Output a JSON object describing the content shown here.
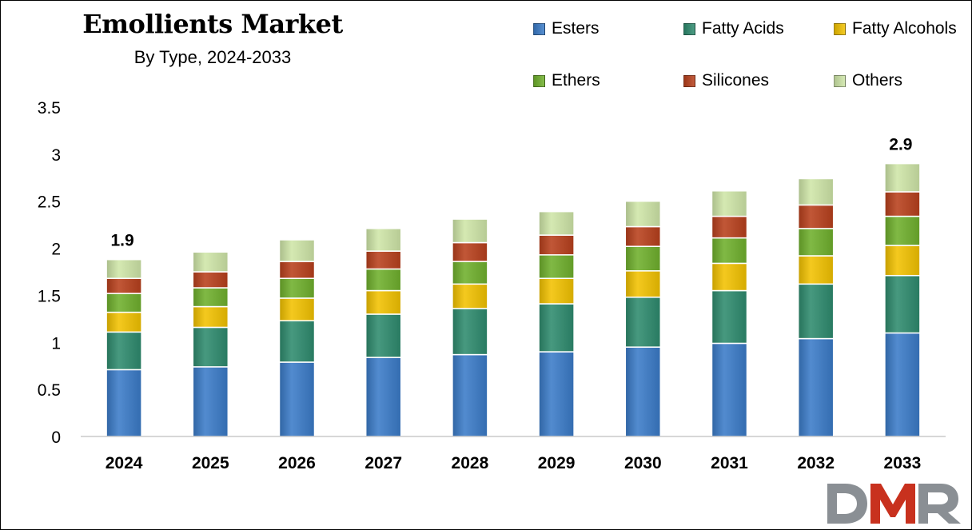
{
  "chart_data": {
    "type": "bar",
    "stacked": true,
    "title": "Emollients Market",
    "subtitle": "By Type, 2024-2033",
    "xlabel": "",
    "ylabel": "",
    "ylim": [
      0,
      3.5
    ],
    "yticks": [
      "0",
      "0.5",
      "1",
      "1.5",
      "2",
      "2.5",
      "3",
      "3.5"
    ],
    "grid": false,
    "legend_position": "top-right",
    "categories": [
      "2024",
      "2025",
      "2026",
      "2027",
      "2028",
      "2029",
      "2030",
      "2031",
      "2032",
      "2033"
    ],
    "series": [
      {
        "name": "Esters",
        "color": "#3a7bc8",
        "values": [
          0.71,
          0.74,
          0.79,
          0.84,
          0.87,
          0.9,
          0.95,
          0.99,
          1.04,
          1.1
        ]
      },
      {
        "name": "Fatty Acids",
        "color": "#2e8b6e",
        "values": [
          0.4,
          0.42,
          0.44,
          0.46,
          0.49,
          0.51,
          0.53,
          0.56,
          0.58,
          0.61
        ]
      },
      {
        "name": "Fatty Alcohols",
        "color": "#f2c200",
        "values": [
          0.21,
          0.22,
          0.24,
          0.25,
          0.26,
          0.27,
          0.28,
          0.29,
          0.3,
          0.32
        ]
      },
      {
        "name": "Ethers",
        "color": "#6fb02c",
        "values": [
          0.2,
          0.2,
          0.21,
          0.23,
          0.24,
          0.25,
          0.26,
          0.27,
          0.29,
          0.31
        ]
      },
      {
        "name": "Silicones",
        "color": "#b8401c",
        "values": [
          0.16,
          0.17,
          0.18,
          0.19,
          0.2,
          0.21,
          0.21,
          0.23,
          0.25,
          0.26
        ]
      },
      {
        "name": "Others",
        "color": "#cfe6a8",
        "values": [
          0.2,
          0.21,
          0.23,
          0.24,
          0.25,
          0.25,
          0.27,
          0.27,
          0.28,
          0.3
        ]
      }
    ],
    "annotations": [
      {
        "category": "2024",
        "label": "1.9"
      },
      {
        "category": "2033",
        "label": "2.9"
      }
    ]
  },
  "logo": {
    "text": "DMR",
    "colors": [
      "#8a8f94",
      "#c8311e"
    ]
  }
}
